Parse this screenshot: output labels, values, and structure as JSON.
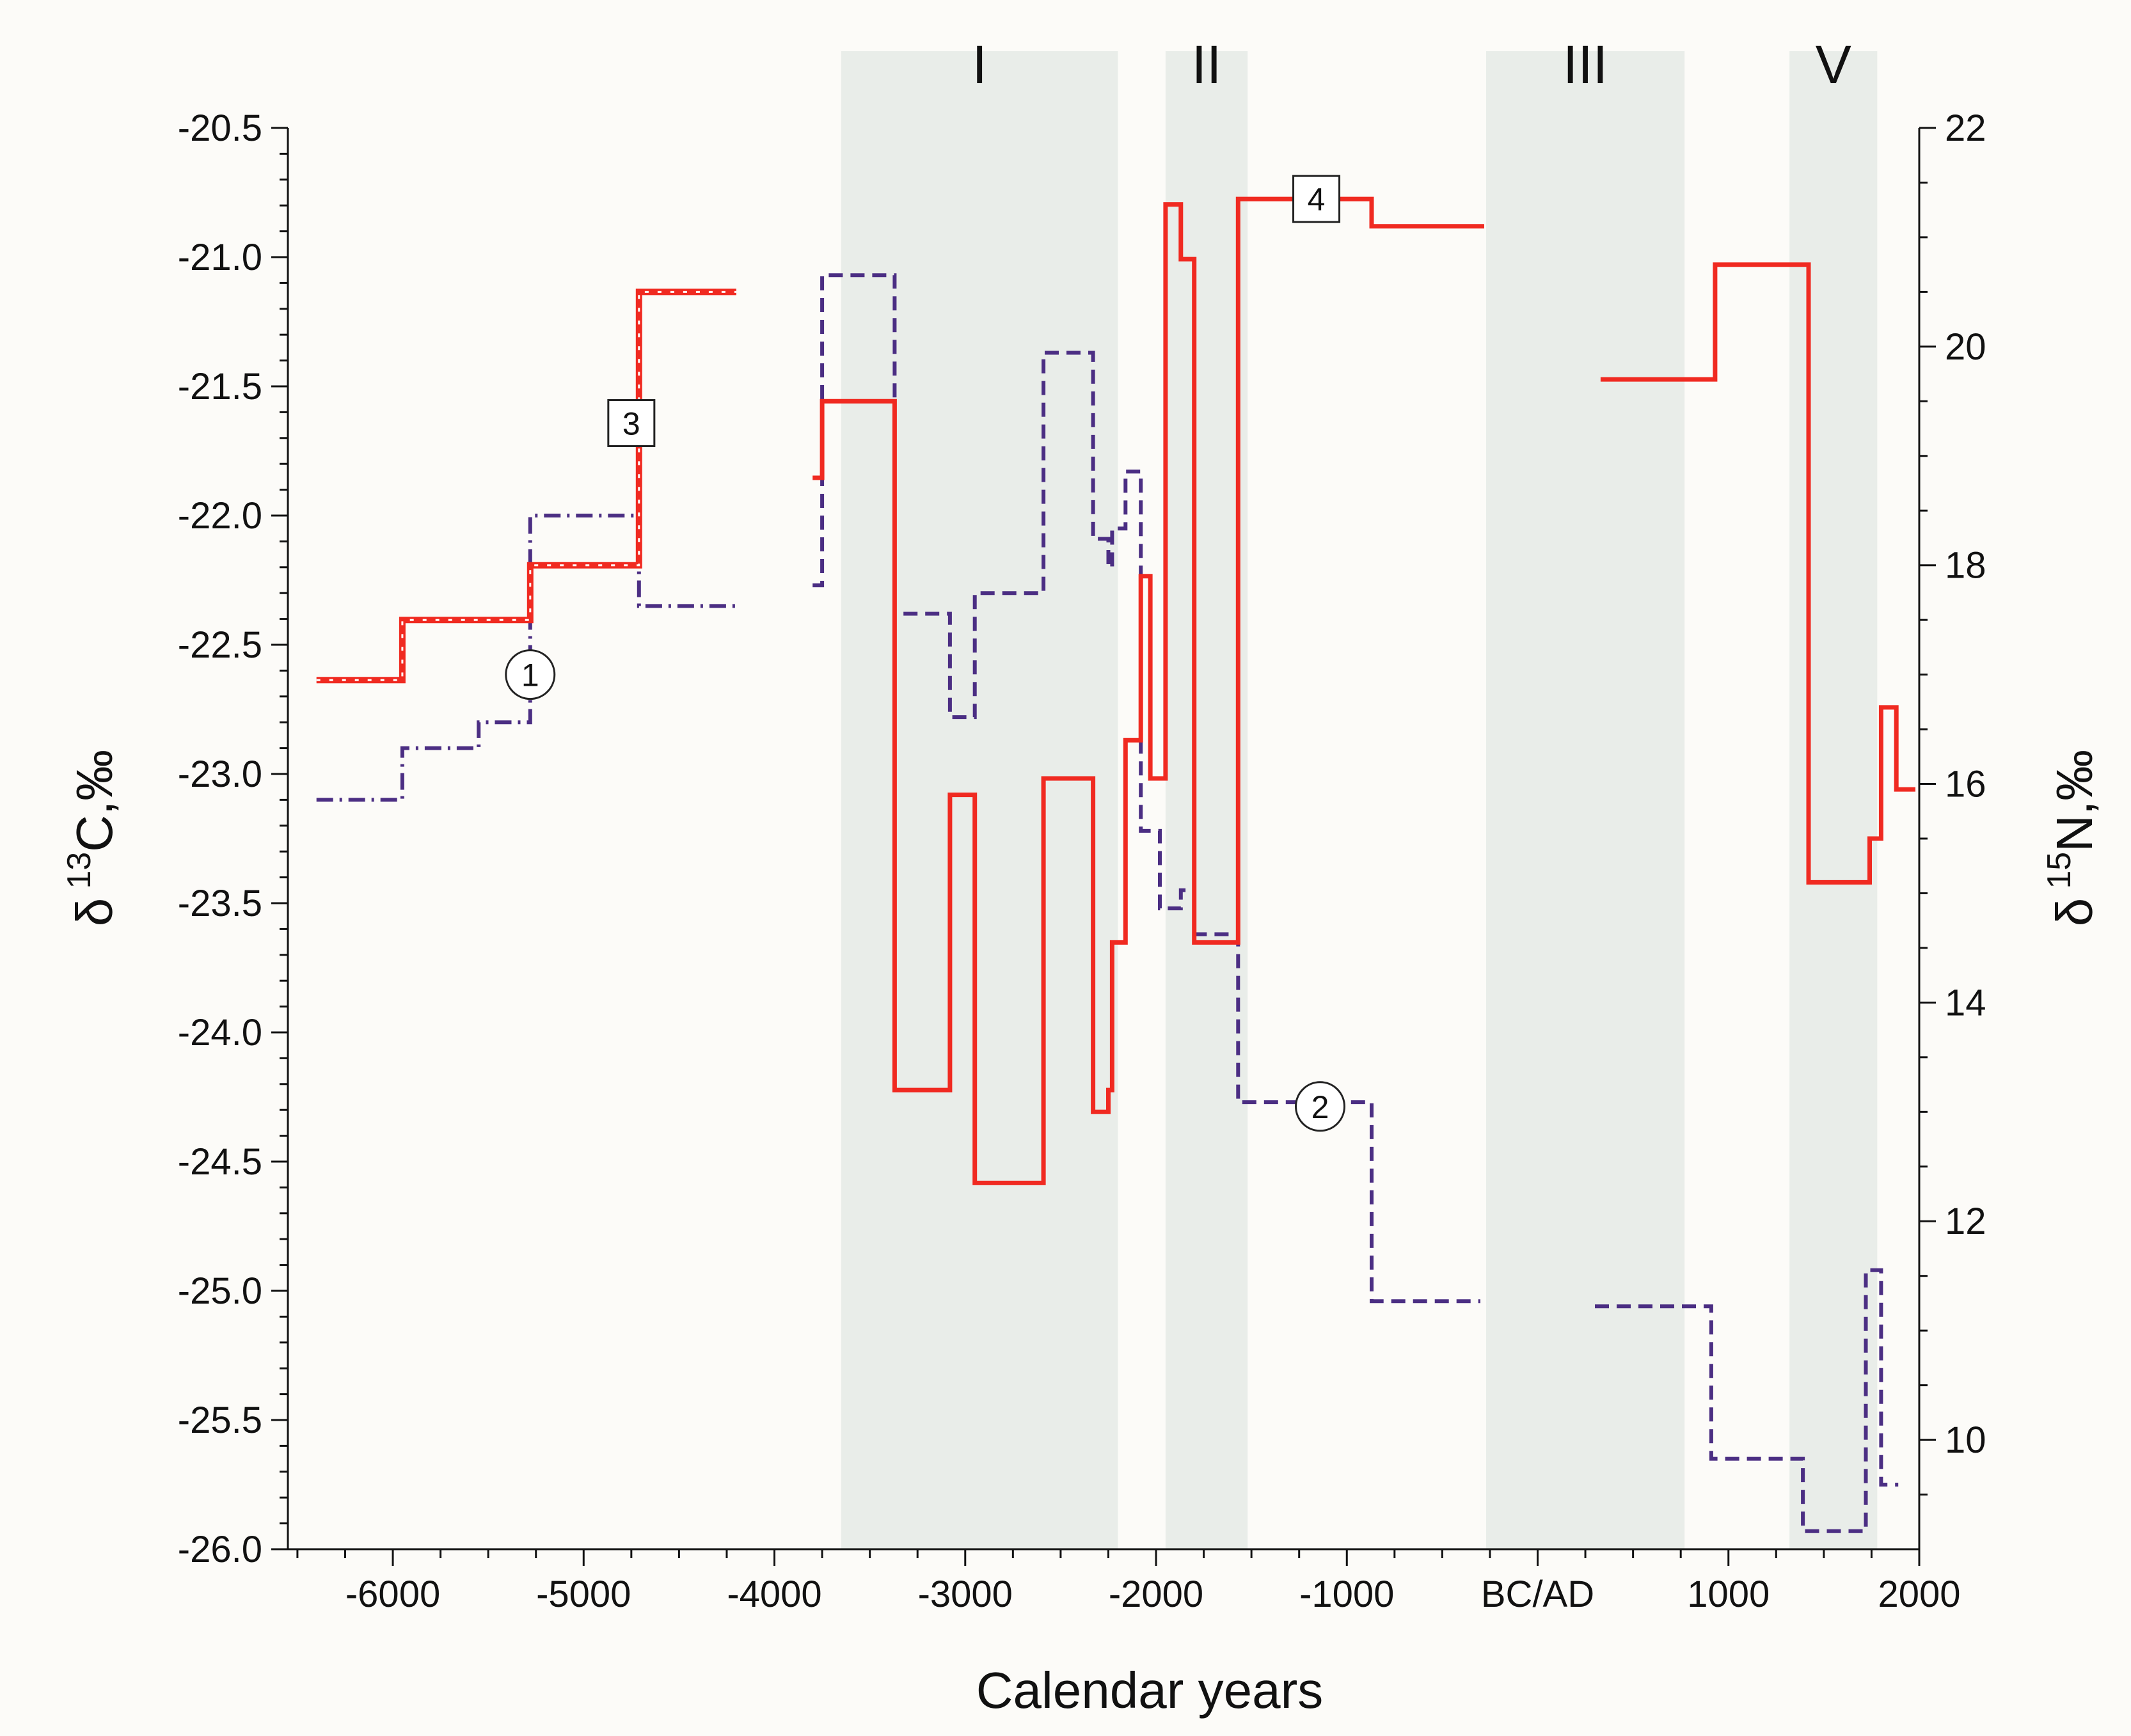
{
  "chart_data": {
    "type": "line",
    "xlabel": "Calendar years",
    "ylabel_left": {
      "delta": "δ",
      "sup": "13",
      "rest": "C,‰"
    },
    "ylabel_right": {
      "delta": "δ",
      "sup": "15",
      "rest": "N,‰"
    },
    "xlim": [
      -6550,
      2000
    ],
    "ylim_left": [
      -26.0,
      -20.5
    ],
    "ylim_right": [
      9.0,
      22.0
    ],
    "x_ticks": [
      {
        "value": -6000,
        "label": "-6000"
      },
      {
        "value": -5000,
        "label": "-5000"
      },
      {
        "value": -4000,
        "label": "-4000"
      },
      {
        "value": -3000,
        "label": "-3000"
      },
      {
        "value": -2000,
        "label": "-2000"
      },
      {
        "value": -1000,
        "label": "-1000"
      },
      {
        "value": 0,
        "label": "BC/AD"
      },
      {
        "value": 1000,
        "label": "1000"
      },
      {
        "value": 2000,
        "label": "2000"
      }
    ],
    "y_ticks_left": [
      "-20.5",
      "-21.0",
      "-21.5",
      "-22.0",
      "-22.5",
      "-23.0",
      "-23.5",
      "-24.0",
      "-24.5",
      "-25.0",
      "-25.5",
      "-26.0"
    ],
    "y_ticks_right": [
      "22",
      "20",
      "18",
      "16",
      "14",
      "12",
      "10"
    ],
    "bands": [
      {
        "label": "I",
        "from": -3650,
        "to": -2200
      },
      {
        "label": "II",
        "from": -1950,
        "to": -1520
      },
      {
        "label": "III",
        "from": -270,
        "to": 770
      },
      {
        "label": "V",
        "from": 1320,
        "to": 1780
      }
    ],
    "series": [
      {
        "name": "1",
        "axis": "left",
        "color": "#4b2e83",
        "style": "dashdot",
        "segments": [
          [
            [
              -6400,
              -23.1
            ],
            [
              -5950,
              -23.1
            ],
            [
              -5950,
              -22.9
            ],
            [
              -5550,
              -22.9
            ],
            [
              -5550,
              -22.8
            ],
            [
              -5280,
              -22.8
            ],
            [
              -5280,
              -22.0
            ],
            [
              -4710,
              -22.0
            ],
            [
              -4710,
              -22.35
            ],
            [
              -4200,
              -22.35
            ]
          ]
        ]
      },
      {
        "name": "2",
        "axis": "left",
        "color": "#4b2e83",
        "style": "dashed",
        "segments": [
          [
            [
              -3800,
              -22.27
            ],
            [
              -3750,
              -22.27
            ],
            [
              -3750,
              -21.07
            ],
            [
              -3370,
              -21.07
            ],
            [
              -3370,
              -22.38
            ],
            [
              -3080,
              -22.38
            ],
            [
              -3080,
              -22.78
            ],
            [
              -2950,
              -22.78
            ],
            [
              -2950,
              -22.3
            ],
            [
              -2590,
              -22.3
            ],
            [
              -2590,
              -21.37
            ],
            [
              -2330,
              -21.37
            ],
            [
              -2330,
              -22.09
            ],
            [
              -2250,
              -22.09
            ],
            [
              -2250,
              -22.2
            ],
            [
              -2230,
              -22.2
            ],
            [
              -2230,
              -22.05
            ],
            [
              -2160,
              -22.05
            ],
            [
              -2160,
              -21.83
            ],
            [
              -2080,
              -21.83
            ],
            [
              -2080,
              -23.22
            ],
            [
              -1980,
              -23.22
            ],
            [
              -1980,
              -23.52
            ],
            [
              -1870,
              -23.52
            ],
            [
              -1870,
              -23.45
            ],
            [
              -1800,
              -23.45
            ],
            [
              -1800,
              -23.62
            ],
            [
              -1570,
              -23.62
            ],
            [
              -1570,
              -24.27
            ],
            [
              -870,
              -24.27
            ],
            [
              -870,
              -25.04
            ],
            [
              -300,
              -25.04
            ]
          ],
          [
            [
              300,
              -25.06
            ],
            [
              910,
              -25.06
            ],
            [
              910,
              -25.65
            ],
            [
              1390,
              -25.65
            ],
            [
              1390,
              -25.93
            ],
            [
              1720,
              -25.93
            ],
            [
              1720,
              -24.92
            ],
            [
              1800,
              -24.92
            ],
            [
              1800,
              -25.75
            ],
            [
              1890,
              -25.75
            ]
          ]
        ]
      },
      {
        "name": "3",
        "axis": "right",
        "color": "#f02a21",
        "style": "dotted",
        "segments": [
          [
            [
              -6400,
              16.95
            ],
            [
              -5950,
              16.95
            ],
            [
              -5950,
              17.5
            ],
            [
              -5280,
              17.5
            ],
            [
              -5280,
              18.0
            ],
            [
              -4710,
              18.0
            ],
            [
              -4710,
              20.5
            ],
            [
              -4200,
              20.5
            ]
          ]
        ]
      },
      {
        "name": "4",
        "axis": "right",
        "color": "#f02a21",
        "style": "solid",
        "segments": [
          [
            [
              -3800,
              18.8
            ],
            [
              -3750,
              18.8
            ],
            [
              -3750,
              19.5
            ],
            [
              -3370,
              19.5
            ],
            [
              -3370,
              13.2
            ],
            [
              -3080,
              13.2
            ],
            [
              -3080,
              15.9
            ],
            [
              -2950,
              15.9
            ],
            [
              -2950,
              12.35
            ],
            [
              -2590,
              12.35
            ],
            [
              -2590,
              16.05
            ],
            [
              -2330,
              16.05
            ],
            [
              -2330,
              13.0
            ],
            [
              -2250,
              13.0
            ],
            [
              -2250,
              13.2
            ],
            [
              -2230,
              13.2
            ],
            [
              -2230,
              14.55
            ],
            [
              -2160,
              14.55
            ],
            [
              -2160,
              16.4
            ],
            [
              -2080,
              16.4
            ],
            [
              -2080,
              17.9
            ],
            [
              -2030,
              17.9
            ],
            [
              -2030,
              16.05
            ],
            [
              -1950,
              16.05
            ],
            [
              -1950,
              21.3
            ],
            [
              -1870,
              21.3
            ],
            [
              -1870,
              20.8
            ],
            [
              -1800,
              20.8
            ],
            [
              -1800,
              14.55
            ],
            [
              -1570,
              14.55
            ],
            [
              -1570,
              21.35
            ],
            [
              -870,
              21.35
            ],
            [
              -870,
              21.1
            ],
            [
              -280,
              21.1
            ]
          ],
          [
            [
              330,
              19.7
            ],
            [
              930,
              19.7
            ],
            [
              930,
              20.75
            ],
            [
              1420,
              20.75
            ],
            [
              1420,
              15.1
            ],
            [
              1740,
              15.1
            ],
            [
              1740,
              15.5
            ],
            [
              1800,
              15.5
            ],
            [
              1800,
              16.7
            ],
            [
              1880,
              16.7
            ],
            [
              1880,
              15.95
            ],
            [
              1980,
              15.95
            ]
          ]
        ]
      }
    ],
    "markers": [
      {
        "label": "1",
        "shape": "circle",
        "x": -5280,
        "y": 17.0,
        "axis": "right"
      },
      {
        "label": "3",
        "shape": "square",
        "x": -4750,
        "y": 19.3,
        "axis": "right"
      },
      {
        "label": "4",
        "shape": "square",
        "x": -1160,
        "y": 21.35,
        "axis": "right"
      },
      {
        "label": "2",
        "shape": "circle",
        "x": -1140,
        "y": 13.05,
        "axis": "right"
      }
    ]
  }
}
